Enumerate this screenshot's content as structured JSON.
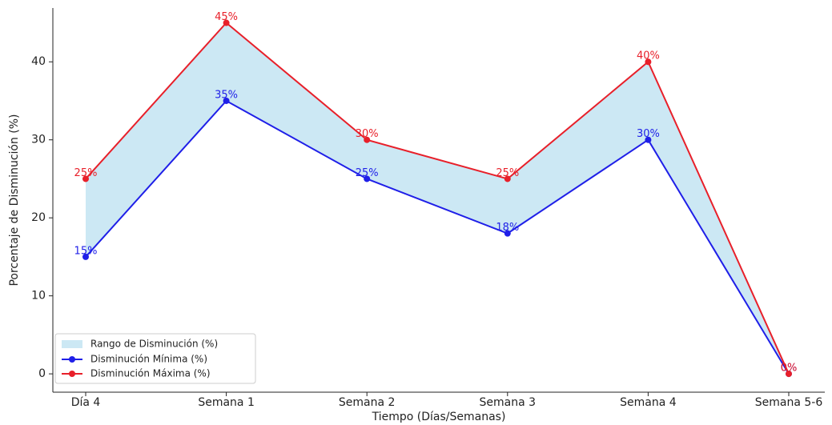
{
  "chart_data": {
    "type": "line",
    "x_label": "Tiempo (Días/Semanas)",
    "y_label": "Porcentaje de Disminución (%)",
    "categories": [
      "Día 4",
      "Semana 1",
      "Semana 2",
      "Semana 3",
      "Semana 4",
      "Semana 5-6"
    ],
    "fill_between": {
      "name": "Rango de Disminución (%)",
      "color": "#cce8f4"
    },
    "series": [
      {
        "name": "Disminución Mínima (%)",
        "color": "#1f1fe8",
        "values": [
          15,
          35,
          25,
          18,
          30,
          0
        ],
        "value_labels": [
          "15%",
          "35%",
          "25%",
          "18%",
          "30%",
          "0%"
        ]
      },
      {
        "name": "Disminución Máxima (%)",
        "color": "#e8202a",
        "values": [
          25,
          45,
          30,
          25,
          40,
          0
        ],
        "value_labels": [
          "25%",
          "45%",
          "30%",
          "25%",
          "40%",
          "0%"
        ]
      }
    ],
    "ylim": [
      -2.35,
      46.9
    ],
    "yticks": [
      0,
      10,
      20,
      30,
      40
    ],
    "legend": "lower left"
  }
}
